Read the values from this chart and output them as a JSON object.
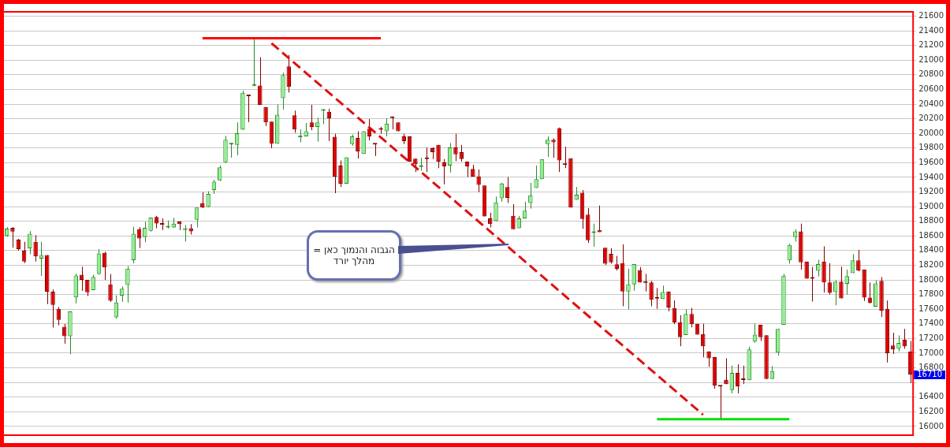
{
  "chart_data": {
    "type": "candlestick",
    "categories": [
      null,
      null,
      null,
      null,
      null,
      null,
      null,
      null,
      null,
      null,
      null,
      null,
      null,
      null,
      null,
      null,
      null,
      null,
      null,
      null,
      null,
      null,
      null,
      null,
      null,
      null,
      null,
      null,
      null,
      null,
      null,
      null,
      null,
      null,
      null,
      null,
      null,
      null,
      null,
      null,
      null,
      null,
      null,
      null,
      null,
      null,
      null,
      null,
      null,
      null,
      null,
      null,
      null,
      null,
      null,
      null,
      null,
      null,
      null,
      null,
      null,
      null,
      null,
      null,
      null,
      null,
      null,
      null,
      null,
      null,
      null,
      null,
      null,
      null,
      null,
      null,
      null,
      null,
      null,
      null,
      null,
      null,
      null,
      null,
      null,
      null,
      null,
      null,
      null,
      null,
      null,
      null,
      null,
      null,
      null,
      null,
      null,
      null,
      null,
      null,
      null,
      null,
      null,
      null,
      null,
      null,
      null,
      null,
      null,
      null,
      null,
      null,
      null,
      null,
      null,
      null,
      null,
      null,
      null,
      null,
      null,
      null,
      null,
      null,
      null,
      null,
      null,
      null,
      null,
      null,
      null,
      null,
      null,
      null,
      null,
      null,
      null,
      null,
      null,
      null,
      null,
      null,
      null,
      null,
      null,
      null,
      null,
      null,
      null,
      null,
      null,
      null,
      null,
      null,
      null,
      null,
      null,
      null
    ],
    "ohlc": [
      [
        18600,
        18720,
        18590,
        18700
      ],
      [
        18710,
        18720,
        18440,
        18660
      ],
      [
        18550,
        18560,
        18400,
        18420
      ],
      [
        18400,
        18520,
        18230,
        18250
      ],
      [
        18430,
        18665,
        18350,
        18630
      ],
      [
        18520,
        18610,
        18250,
        18320
      ],
      [
        18290,
        18520,
        18055,
        18340
      ],
      [
        18340,
        18340,
        17670,
        17840
      ],
      [
        17840,
        17870,
        17350,
        17660
      ],
      [
        17605,
        17630,
        17380,
        17455
      ],
      [
        17360,
        17400,
        17130,
        17230
      ],
      [
        17230,
        17570,
        16985,
        17570
      ],
      [
        17760,
        18085,
        17680,
        18060
      ],
      [
        18070,
        18180,
        17850,
        18000
      ],
      [
        18000,
        18000,
        17780,
        17830
      ],
      [
        17860,
        18070,
        17860,
        18040
      ],
      [
        18080,
        18420,
        18070,
        18360
      ],
      [
        18370,
        18385,
        18000,
        18170
      ],
      [
        17940,
        18080,
        17700,
        17715
      ],
      [
        17490,
        17790,
        17470,
        17690
      ],
      [
        17785,
        17910,
        17700,
        17880
      ],
      [
        17930,
        18190,
        17690,
        18155
      ],
      [
        18270,
        18725,
        18225,
        18630
      ],
      [
        18695,
        18720,
        18435,
        18565
      ],
      [
        18585,
        18795,
        18515,
        18710
      ],
      [
        18670,
        18850,
        18660,
        18850
      ],
      [
        18860,
        18874,
        18705,
        18770
      ],
      [
        18776,
        18840,
        18680,
        18750
      ],
      [
        18716,
        18810,
        18700,
        18734
      ],
      [
        18716,
        18846,
        18710,
        18768
      ],
      [
        18797,
        18800,
        18680,
        18762
      ],
      [
        18680,
        18750,
        18522,
        18705
      ],
      [
        18705,
        18762,
        18620,
        18663
      ],
      [
        18821,
        18987,
        18716,
        18987
      ],
      [
        19050,
        19198,
        18980,
        18987
      ],
      [
        18997,
        19209,
        18990,
        19174
      ],
      [
        19226,
        19367,
        19174,
        19340
      ],
      [
        19360,
        19561,
        19350,
        19536
      ],
      [
        19607,
        19966,
        19596,
        19913
      ],
      [
        19850,
        19870,
        19670,
        19860
      ],
      [
        19843,
        20150,
        19702,
        20001
      ],
      [
        20054,
        20582,
        20043,
        20554
      ],
      [
        20522,
        20522,
        20153,
        20508
      ],
      [
        20650,
        21300,
        20640,
        20650
      ],
      [
        20653,
        21040,
        20389,
        20389
      ],
      [
        20360,
        20360,
        20100,
        20149
      ],
      [
        20160,
        20160,
        19797,
        19860
      ],
      [
        19860,
        20396,
        19860,
        20255
      ],
      [
        20480,
        20829,
        20325,
        20797
      ],
      [
        20913,
        21072,
        20558,
        20635
      ],
      [
        20248,
        20311,
        20008,
        20054
      ],
      [
        19948,
        20054,
        19878,
        19973
      ],
      [
        19959,
        20142,
        19959,
        20030
      ],
      [
        20149,
        20389,
        20043,
        20089
      ],
      [
        20089,
        20213,
        19888,
        20149
      ],
      [
        20308,
        20330,
        20125,
        20325
      ],
      [
        20294,
        20336,
        19895,
        20206
      ],
      [
        19955,
        19994,
        19184,
        19409
      ],
      [
        19561,
        19631,
        19269,
        19314
      ],
      [
        19314,
        19674,
        19314,
        19674
      ],
      [
        19853,
        19984,
        19832,
        19959
      ],
      [
        19938,
        20030,
        19656,
        19755
      ],
      [
        19719,
        20030,
        19719,
        20030
      ],
      [
        20065,
        20195,
        19903,
        19959
      ],
      [
        19853,
        19853,
        19691,
        19850
      ],
      [
        20054,
        20089,
        19994,
        20050
      ],
      [
        20030,
        20206,
        19959,
        20135
      ],
      [
        20213,
        20230,
        20054,
        20210
      ],
      [
        20149,
        20149,
        20030,
        20030
      ],
      [
        19959,
        19994,
        19853,
        19895
      ],
      [
        19959,
        19959,
        19614,
        19614
      ],
      [
        19656,
        19656,
        19473,
        19579
      ],
      [
        19543,
        19667,
        19490,
        19560
      ],
      [
        19656,
        19808,
        19473,
        19650
      ],
      [
        19797,
        19810,
        19649,
        19744
      ],
      [
        19843,
        19843,
        19526,
        19614
      ],
      [
        19603,
        19649,
        19304,
        19551
      ],
      [
        19561,
        19868,
        19466,
        19808
      ],
      [
        19808,
        19994,
        19621,
        19713
      ],
      [
        19744,
        19843,
        19614,
        19649
      ],
      [
        19614,
        19614,
        19403,
        19551
      ],
      [
        19515,
        19572,
        19410,
        19410
      ],
      [
        19413,
        19508,
        19198,
        19297
      ],
      [
        19290,
        19290,
        18867,
        18867
      ],
      [
        18839,
        18917,
        18716,
        18762
      ],
      [
        18804,
        19139,
        18804,
        19058
      ],
      [
        19114,
        19325,
        19068,
        19315
      ],
      [
        19269,
        19403,
        19051,
        19121
      ],
      [
        18874,
        19033,
        18691,
        18691
      ],
      [
        18705,
        18874,
        18705,
        18839
      ],
      [
        18839,
        19068,
        18839,
        18945
      ],
      [
        19051,
        19325,
        18973,
        19156
      ],
      [
        19255,
        19561,
        19255,
        19375
      ],
      [
        19375,
        19649,
        19375,
        19649
      ],
      [
        19854,
        19959,
        19678,
        19913
      ],
      [
        19913,
        19931,
        19667,
        19878
      ],
      [
        20072,
        20079,
        19473,
        19632
      ],
      [
        19589,
        19818,
        19526,
        19568
      ],
      [
        19660,
        19660,
        18987,
        18987
      ],
      [
        19093,
        19269,
        19093,
        19163
      ],
      [
        19191,
        19227,
        18698,
        18832
      ],
      [
        18892,
        18980,
        18504,
        18540
      ],
      [
        18640,
        18768,
        18451,
        18645
      ],
      [
        18680,
        19015,
        18652,
        18652
      ],
      [
        18440,
        18440,
        18205,
        18222
      ],
      [
        18356,
        18434,
        18222,
        18240
      ],
      [
        18212,
        18328,
        18127,
        18152
      ],
      [
        18229,
        18486,
        17641,
        17842
      ],
      [
        17842,
        18152,
        17599,
        17940
      ],
      [
        17940,
        18215,
        17852,
        18215
      ],
      [
        18134,
        18176,
        17965,
        17965
      ],
      [
        17965,
        18081,
        17842,
        17960
      ],
      [
        17965,
        17986,
        17641,
        17729
      ],
      [
        17747,
        17888,
        17606,
        17745
      ],
      [
        17740,
        17923,
        17740,
        17835
      ],
      [
        17842,
        17842,
        17571,
        17624
      ],
      [
        17617,
        17719,
        17395,
        17419
      ],
      [
        17423,
        17518,
        17095,
        17219
      ],
      [
        17247,
        17599,
        17247,
        17536
      ],
      [
        17536,
        17617,
        17352,
        17395
      ],
      [
        17402,
        17402,
        17254,
        17254
      ],
      [
        17261,
        17402,
        16944,
        17095
      ],
      [
        17025,
        17025,
        16813,
        16930
      ],
      [
        16947,
        16947,
        16514,
        16556
      ],
      [
        16549,
        16549,
        16100,
        16545
      ],
      [
        16637,
        16930,
        16577,
        16577
      ],
      [
        16496,
        16831,
        16451,
        16732
      ],
      [
        16732,
        16848,
        16451,
        16549
      ],
      [
        16640,
        16831,
        16578,
        16635
      ],
      [
        16630,
        17085,
        16630,
        17050
      ],
      [
        17156,
        17402,
        17141,
        17254
      ],
      [
        17388,
        17388,
        17166,
        17219
      ],
      [
        17244,
        17244,
        16648,
        16648
      ],
      [
        16648,
        16824,
        16648,
        16754
      ],
      [
        17008,
        17331,
        16965,
        17331
      ],
      [
        17388,
        18082,
        17388,
        18057
      ],
      [
        18268,
        18494,
        18222,
        18476
      ],
      [
        18585,
        18691,
        18522,
        18663
      ],
      [
        18663,
        18768,
        18141,
        18240
      ],
      [
        18247,
        18247,
        18018,
        18018
      ],
      [
        18020,
        18177,
        17705,
        18018
      ],
      [
        18124,
        18275,
        18046,
        18215
      ],
      [
        18251,
        18458,
        17828,
        17965
      ],
      [
        17965,
        18229,
        17800,
        17824
      ],
      [
        17835,
        17994,
        17652,
        17976
      ],
      [
        17976,
        18180,
        17747,
        17747
      ],
      [
        17948,
        18141,
        17800,
        18053
      ],
      [
        18092,
        18353,
        18092,
        18268
      ],
      [
        18268,
        18409,
        18117,
        18127
      ],
      [
        18141,
        18141,
        17712,
        17758
      ],
      [
        17758,
        17965,
        17677,
        17687
      ],
      [
        17634,
        17994,
        17634,
        17951
      ],
      [
        17987,
        18039,
        17493,
        17581
      ],
      [
        17606,
        17719,
        16873,
        17000
      ],
      [
        17106,
        17279,
        16990,
        17050
      ],
      [
        17060,
        17243,
        17025,
        17141
      ],
      [
        17183,
        17331,
        17060,
        17095
      ],
      [
        17025,
        17166,
        16592,
        16710
      ]
    ],
    "series": [
      {
        "type": "line",
        "color": "#ff0000",
        "values": [
          null,
          null,
          null,
          null,
          null,
          null,
          null,
          null,
          null,
          null,
          null,
          null,
          null,
          null,
          null,
          null,
          null,
          null,
          null,
          null,
          null,
          null,
          null,
          null,
          null,
          null,
          null,
          null,
          null,
          null,
          null,
          null,
          null,
          null,
          21300,
          null,
          null,
          null,
          null,
          null,
          null,
          null,
          null,
          null,
          null,
          null,
          null,
          null,
          null,
          null,
          null,
          null,
          null,
          null,
          null,
          null,
          null,
          null,
          null,
          null,
          null,
          null,
          null,
          null,
          null,
          21300,
          null,
          null,
          null,
          null,
          null,
          null,
          null,
          null,
          null,
          null,
          null,
          null,
          null,
          null,
          null,
          null,
          null,
          null,
          null,
          null,
          null,
          null,
          null,
          null,
          null,
          null,
          null,
          null,
          null,
          null,
          null,
          null,
          null,
          null,
          null,
          null,
          null,
          null,
          null,
          null,
          null,
          null,
          null,
          null,
          null,
          null,
          null,
          null,
          null,
          null,
          null,
          null,
          null,
          null,
          null,
          null,
          null,
          null,
          null,
          null,
          null,
          null,
          null,
          null,
          null,
          null,
          null,
          null,
          null,
          null,
          null,
          null,
          null,
          null,
          null,
          null,
          null,
          null,
          null,
          null,
          null,
          null,
          null,
          null,
          null,
          null,
          null,
          null,
          null,
          null,
          null,
          null
        ]
      },
      {
        "type": "line",
        "color": "#00e000",
        "values": [
          null,
          null,
          null,
          null,
          null,
          null,
          null,
          null,
          null,
          null,
          null,
          null,
          null,
          null,
          null,
          null,
          null,
          null,
          null,
          null,
          null,
          null,
          null,
          null,
          null,
          null,
          null,
          null,
          null,
          null,
          null,
          null,
          null,
          null,
          null,
          null,
          null,
          null,
          null,
          null,
          null,
          null,
          null,
          null,
          null,
          null,
          null,
          null,
          null,
          null,
          null,
          null,
          null,
          null,
          null,
          null,
          null,
          null,
          null,
          null,
          null,
          null,
          null,
          null,
          null,
          null,
          null,
          null,
          null,
          null,
          null,
          null,
          null,
          null,
          null,
          null,
          null,
          null,
          null,
          null,
          null,
          null,
          null,
          null,
          null,
          null,
          null,
          null,
          null,
          null,
          null,
          null,
          null,
          null,
          null,
          null,
          null,
          null,
          null,
          null,
          null,
          null,
          null,
          null,
          null,
          null,
          null,
          null,
          null,
          null,
          null,
          null,
          null,
          16100,
          null,
          null,
          null,
          null,
          null,
          null,
          null,
          null,
          null,
          null,
          null,
          null,
          null,
          null,
          null,
          null,
          null,
          null,
          null,
          null,
          null,
          null,
          16100,
          null,
          null,
          null,
          null,
          null,
          null,
          null,
          null,
          null,
          null,
          null,
          null,
          null,
          null,
          null,
          null,
          null,
          null,
          null,
          null,
          null
        ]
      },
      {
        "type": "line",
        "color": "#e01010",
        "line_style": "dashed",
        "values": [
          null,
          null,
          null,
          null,
          null,
          null,
          null,
          null,
          null,
          null,
          null,
          null,
          null,
          null,
          null,
          null,
          null,
          null,
          null,
          null,
          null,
          null,
          null,
          null,
          null,
          null,
          null,
          null,
          null,
          null,
          null,
          null,
          null,
          null,
          null,
          null,
          null,
          null,
          null,
          null,
          null,
          null,
          null,
          null,
          null,
          null,
          21230,
          null,
          null,
          null,
          null,
          null,
          null,
          null,
          null,
          null,
          null,
          null,
          null,
          null,
          null,
          null,
          null,
          null,
          null,
          null,
          null,
          null,
          null,
          null,
          null,
          null,
          null,
          null,
          null,
          null,
          null,
          null,
          null,
          null,
          null,
          null,
          null,
          null,
          null,
          null,
          null,
          null,
          null,
          null,
          null,
          null,
          null,
          null,
          null,
          null,
          null,
          null,
          null,
          null,
          null,
          null,
          null,
          null,
          null,
          null,
          null,
          null,
          null,
          null,
          null,
          null,
          null,
          null,
          null,
          null,
          null,
          null,
          null,
          null,
          null,
          16160,
          null,
          null,
          null,
          null,
          null,
          null,
          null,
          null,
          null,
          null,
          null,
          null,
          null,
          null,
          null,
          null,
          null,
          null,
          null,
          null,
          null,
          null,
          null,
          null,
          null,
          null,
          null,
          null,
          null,
          null,
          null,
          null,
          null,
          null,
          null,
          null
        ]
      }
    ],
    "ylim": [
      15870,
      21670
    ],
    "yticks": [
      16000,
      16200,
      16400,
      {
        "value": 16600,
        "label": null
      },
      16800,
      17000,
      17200,
      17400,
      17600,
      17800,
      18000,
      18200,
      18400,
      18600,
      18800,
      19000,
      19200,
      19400,
      19600,
      19800,
      20000,
      20200,
      20400,
      20600,
      20800,
      21000,
      21200,
      21400,
      21600
    ],
    "grid": "y",
    "tick_labels": "y",
    "annotations": [
      "הגבוה והנמוך כאן = מהלך יורד",
      "16710"
    ]
  }
}
